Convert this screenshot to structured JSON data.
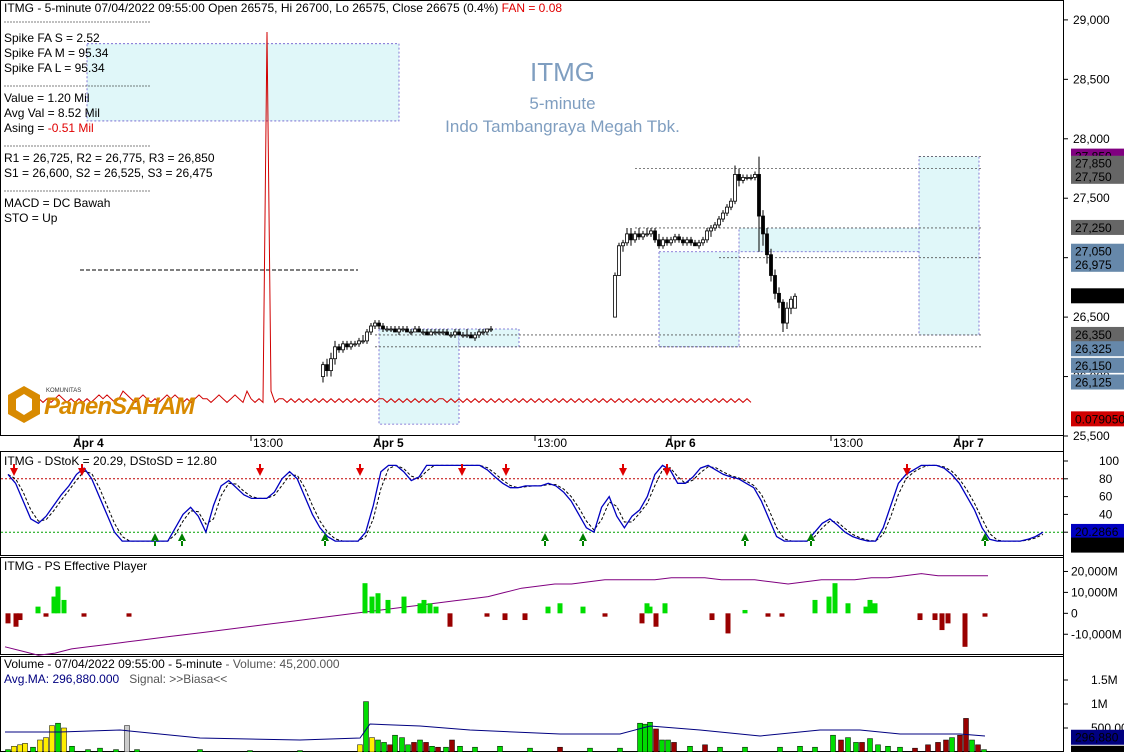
{
  "header": {
    "symbol": "ITMG",
    "text": "ITMG - 5-minute 07/04/2022 09:55:00 Open 26575, Hi 26700, Lo 26575, Close 26675 (0.4%)",
    "fan": "FAN = 0.08"
  },
  "watermark": {
    "symbol": "ITMG",
    "interval": "5-minute",
    "company": "Indo Tambangraya Megah Tbk."
  },
  "info_panel": {
    "spike_s": "Spike FA S =  2.52",
    "spike_m": "Spike FA M =  95.34",
    "spike_l": "Spike FA L =  95.34",
    "value": "Value = 1.20 Mil",
    "avg_val": "Avg Val = 8.52 Mil",
    "asing_label": "Asing = ",
    "asing_value": "-0.51 Mil",
    "resistance": "R1 = 26,725, R2 = 26,775, R3 = 26,850",
    "support": "S1 = 26,600, S2 = 26,525, S3 = 26,475",
    "macd": "MACD =  DC Bawah",
    "sto": "STO  =  Up"
  },
  "logo": {
    "small": "KOMUNITAS",
    "text": "PanenSAHAM"
  },
  "colors": {
    "up": "#ffffff",
    "down": "#000000",
    "band": "#e0f7f9",
    "red_line": "#d00000",
    "k_line": "#0000c0",
    "ps_line": "#800080",
    "vol_green": "#00dd00",
    "vol_red": "#990000",
    "vol_yellow": "#ffee00"
  },
  "chart_data": [
    {
      "type": "candlestick",
      "panel": "price",
      "title": "ITMG - 5-minute 07/04/2022 09:55:00",
      "ylim": [
        25500,
        29100
      ],
      "y_ticks": [
        "29,000",
        "28,500",
        "28,000",
        "27,500",
        "27,000",
        "26,500",
        "26,000",
        "25,500"
      ],
      "x_labels": [
        {
          "label": "Apr 4",
          "bar": 0
        },
        {
          "label": "13:00",
          "bar": 43
        },
        {
          "label": "Apr 5",
          "bar": 75
        },
        {
          "label": "13:00",
          "bar": 114
        },
        {
          "label": "Apr 6",
          "bar": 148
        },
        {
          "label": "13:00",
          "bar": 188
        },
        {
          "label": "Apr 7",
          "bar": 220
        }
      ],
      "ohlc_note": "Apr 4 shows no price bars; candles begin on Apr 5",
      "candles": [
        [
          61,
          26000,
          26125,
          25950,
          26100
        ],
        [
          62,
          26100,
          26150,
          26000,
          26050
        ],
        [
          63,
          26050,
          26200,
          26000,
          26150
        ],
        [
          64,
          26150,
          26300,
          26100,
          26250
        ],
        [
          65,
          26250,
          26275,
          26200,
          26225
        ],
        [
          66,
          26225,
          26300,
          26200,
          26275
        ],
        [
          67,
          26275,
          26300,
          26225,
          26250
        ],
        [
          68,
          26250,
          26300,
          26225,
          26275
        ],
        [
          69,
          26275,
          26300,
          26250,
          26275
        ],
        [
          70,
          26275,
          26325,
          26250,
          26300
        ],
        [
          71,
          26300,
          26350,
          26275,
          26300
        ],
        [
          72,
          26300,
          26400,
          26275,
          26375
        ],
        [
          73,
          26375,
          26450,
          26350,
          26425
        ],
        [
          74,
          26425,
          26475,
          26400,
          26450
        ],
        [
          75,
          26450,
          26475,
          26400,
          26425
        ],
        [
          76,
          26425,
          26450,
          26375,
          26400
        ],
        [
          77,
          26400,
          26425,
          26375,
          26400
        ],
        [
          78,
          26400,
          26425,
          26375,
          26400
        ],
        [
          79,
          26400,
          26425,
          26375,
          26375
        ],
        [
          80,
          26375,
          26425,
          26350,
          26400
        ],
        [
          81,
          26400,
          26425,
          26375,
          26400
        ],
        [
          82,
          26400,
          26425,
          26375,
          26375
        ],
        [
          83,
          26375,
          26400,
          26350,
          26375
        ],
        [
          84,
          26375,
          26425,
          26375,
          26400
        ],
        [
          85,
          26400,
          26425,
          26375,
          26375
        ],
        [
          86,
          26375,
          26400,
          26350,
          26375
        ],
        [
          87,
          26375,
          26400,
          26350,
          26350
        ],
        [
          88,
          26350,
          26400,
          26350,
          26375
        ],
        [
          89,
          26375,
          26400,
          26350,
          26375
        ],
        [
          90,
          26375,
          26400,
          26350,
          26375
        ],
        [
          91,
          26375,
          26400,
          26350,
          26375
        ],
        [
          92,
          26375,
          26400,
          26350,
          26350
        ],
        [
          93,
          26350,
          26375,
          26325,
          26350
        ],
        [
          94,
          26350,
          26400,
          26325,
          26375
        ],
        [
          95,
          26375,
          26400,
          26350,
          26350
        ],
        [
          96,
          26350,
          26375,
          26325,
          26350
        ],
        [
          97,
          26350,
          26400,
          26325,
          26350
        ],
        [
          98,
          26350,
          26375,
          26325,
          26325
        ],
        [
          99,
          26325,
          26375,
          26300,
          26350
        ],
        [
          100,
          26350,
          26400,
          26325,
          26375
        ],
        [
          101,
          26375,
          26400,
          26350,
          26375
        ],
        [
          102,
          26375,
          26400,
          26350,
          26400
        ],
        [
          103,
          26400,
          26425,
          26375,
          26400
        ],
        [
          134,
          26500,
          26875,
          26500,
          26850
        ],
        [
          135,
          26850,
          27125,
          26850,
          27100
        ],
        [
          136,
          27100,
          27150,
          27050,
          27125
        ],
        [
          137,
          27125,
          27250,
          27100,
          27200
        ],
        [
          138,
          27200,
          27250,
          27100,
          27150
        ],
        [
          139,
          27150,
          27225,
          27125,
          27200
        ],
        [
          140,
          27200,
          27250,
          27150,
          27175
        ],
        [
          141,
          27175,
          27225,
          27150,
          27200
        ],
        [
          142,
          27200,
          27250,
          27175,
          27200
        ],
        [
          143,
          27200,
          27250,
          27175,
          27225
        ],
        [
          144,
          27225,
          27250,
          27125,
          27150
        ],
        [
          145,
          27150,
          27200,
          27075,
          27100
        ],
        [
          146,
          27100,
          27175,
          27075,
          27150
        ],
        [
          147,
          27150,
          27175,
          27100,
          27125
        ],
        [
          148,
          27125,
          27175,
          27100,
          27150
        ],
        [
          149,
          27150,
          27200,
          27125,
          27175
        ],
        [
          150,
          27175,
          27200,
          27125,
          27150
        ],
        [
          151,
          27150,
          27175,
          27100,
          27125
        ],
        [
          152,
          27125,
          27175,
          27100,
          27150
        ],
        [
          153,
          27150,
          27175,
          27100,
          27125
        ],
        [
          154,
          27125,
          27150,
          27100,
          27100
        ],
        [
          155,
          27100,
          27150,
          27075,
          27125
        ],
        [
          156,
          27125,
          27175,
          27100,
          27150
        ],
        [
          157,
          27150,
          27250,
          27125,
          27225
        ],
        [
          158,
          27225,
          27275,
          27175,
          27250
        ],
        [
          159,
          27250,
          27300,
          27225,
          27275
        ],
        [
          160,
          27275,
          27350,
          27250,
          27325
        ],
        [
          161,
          27325,
          27400,
          27300,
          27375
        ],
        [
          162,
          27375,
          27450,
          27350,
          27425
        ],
        [
          163,
          27425,
          27500,
          27400,
          27475
        ],
        [
          164,
          27475,
          27775,
          27450,
          27700
        ],
        [
          165,
          27700,
          27750,
          27600,
          27650
        ],
        [
          166,
          27650,
          27700,
          27625,
          27675
        ],
        [
          167,
          27675,
          27700,
          27650,
          27675
        ],
        [
          168,
          27675,
          27700,
          27650,
          27675
        ],
        [
          169,
          27675,
          27725,
          27650,
          27700
        ],
        [
          170,
          27700,
          27850,
          27050,
          27350
        ],
        [
          171,
          27350,
          27400,
          27100,
          27200
        ],
        [
          172,
          27200,
          27250,
          26950,
          27025
        ],
        [
          173,
          27025,
          27075,
          26800,
          26850
        ],
        [
          174,
          26850,
          26900,
          26650,
          26700
        ],
        [
          175,
          26700,
          26750,
          26575,
          26625
        ],
        [
          176,
          26625,
          26650,
          26375,
          26450
        ],
        [
          177,
          26450,
          26625,
          26400,
          26575
        ],
        [
          178,
          26575,
          26675,
          26525,
          26650
        ],
        [
          179,
          26575,
          26700,
          26575,
          26675
        ]
      ],
      "candle_format": [
        "bar",
        "open",
        "high",
        "low",
        "close"
      ],
      "right_labels": [
        {
          "label": "27,850",
          "price": 27850,
          "color": "#800080"
        },
        {
          "label": "27,850",
          "price": 27790,
          "color": "#666666"
        },
        {
          "label": "27,750",
          "price": 27680,
          "color": "#666666"
        },
        {
          "label": "27,250",
          "price": 27250,
          "color": "#666666"
        },
        {
          "label": "27,050",
          "price": 27050,
          "color": "#6688aa"
        },
        {
          "label": "26,975",
          "price": 26940,
          "color": "#6688aa"
        },
        {
          "label": "26,675",
          "price": 26675,
          "color": "#000000"
        },
        {
          "label": "26,350",
          "price": 26350,
          "color": "#666666"
        },
        {
          "label": "26,325",
          "price": 26230,
          "color": "#6688aa"
        },
        {
          "label": "26,150",
          "price": 26090,
          "color": "#6688aa"
        },
        {
          "label": "26,125",
          "price": 25950,
          "color": "#6688aa"
        },
        {
          "label": "0.079050",
          "price": 25640,
          "color": "#d00000"
        }
      ],
      "fan_series": [
        3,
        2,
        3,
        2,
        3,
        2,
        3,
        4,
        3,
        2,
        3,
        2,
        3,
        2,
        3,
        2,
        3,
        4,
        3,
        4,
        3,
        2,
        3,
        5,
        4,
        3,
        2,
        3,
        4,
        3,
        2,
        3,
        2,
        3,
        4,
        3,
        4,
        3,
        2,
        3,
        2,
        3,
        4,
        3,
        3,
        2,
        3,
        4,
        3,
        2,
        3,
        4,
        3,
        2,
        5,
        3,
        2,
        3,
        2,
        100,
        5,
        2,
        3,
        3,
        2,
        3,
        2,
        3,
        2,
        3,
        2,
        3,
        2,
        3,
        2,
        3,
        2,
        3,
        2,
        3,
        2,
        3,
        2,
        3,
        2,
        3,
        2,
        3,
        3,
        2,
        3,
        2,
        3,
        2,
        3,
        2,
        3,
        2,
        3,
        2,
        3,
        2,
        3,
        3,
        2,
        3,
        2,
        3,
        2,
        3,
        2,
        3,
        2,
        3,
        2,
        3,
        2,
        3,
        2,
        3,
        2,
        3,
        2,
        3,
        2,
        3,
        2,
        3,
        2,
        3,
        2,
        3,
        2,
        3,
        2,
        3,
        2,
        3,
        2,
        3,
        2,
        3,
        2,
        3,
        2,
        3,
        2,
        3,
        2,
        3,
        2,
        3,
        2,
        3,
        2,
        3,
        2,
        3,
        2,
        3,
        2,
        3,
        2,
        3,
        2,
        3,
        2,
        3,
        2,
        3,
        2,
        3,
        2,
        3,
        2,
        3,
        2,
        3,
        2,
        3,
        2
      ]
    },
    {
      "type": "line",
      "panel": "stochastic",
      "title": "ITMG - DStoK = 20.29, DStoSD = 12.80",
      "ylim": [
        0,
        100
      ],
      "y_ticks": [
        "100",
        "80",
        "60",
        "40",
        "20"
      ],
      "levels": [
        80,
        20
      ],
      "last_k": "20.2866",
      "last_sd": "12.7964",
      "k": [
        85,
        75,
        55,
        35,
        30,
        38,
        50,
        62,
        72,
        85,
        92,
        80,
        60,
        40,
        20,
        10,
        10,
        10,
        10,
        10,
        10,
        10,
        25,
        40,
        48,
        38,
        20,
        50,
        72,
        78,
        70,
        62,
        58,
        58,
        58,
        65,
        80,
        88,
        80,
        60,
        40,
        25,
        15,
        10,
        10,
        10,
        10,
        20,
        50,
        88,
        95,
        95,
        88,
        78,
        82,
        95,
        95,
        95,
        95,
        95,
        95,
        95,
        95,
        90,
        82,
        75,
        70,
        70,
        72,
        72,
        72,
        75,
        72,
        65,
        55,
        40,
        25,
        20,
        48,
        60,
        38,
        25,
        38,
        45,
        60,
        85,
        95,
        90,
        75,
        75,
        82,
        92,
        95,
        90,
        85,
        82,
        80,
        75,
        70,
        55,
        35,
        15,
        10,
        10,
        10,
        10,
        20,
        30,
        35,
        28,
        20,
        15,
        12,
        10,
        10,
        25,
        50,
        75,
        85,
        90,
        95,
        95,
        95,
        92,
        85,
        75,
        60,
        45,
        25,
        12,
        10,
        10,
        10,
        10,
        12,
        15,
        20
      ]
    },
    {
      "type": "bar",
      "panel": "effective_player",
      "title": "ITMG - PS Effective Player",
      "y_ticks": [
        "20,000M",
        "10,000M",
        "0",
        "-10,000M"
      ],
      "ylim": [
        -18000,
        25000
      ]
    },
    {
      "type": "bar",
      "panel": "volume",
      "title": "Volume - 07/04/2022 09:55:00 - 5-minute",
      "volume_text": "- Volume: 45,200.000",
      "avg_ma": "Avg.MA: 296,880.000",
      "signal": "Signal: >>Biasa<<",
      "y_ticks": [
        "1.5M",
        "1M",
        "500,000"
      ],
      "ylim": [
        0,
        2000000
      ],
      "last_ma_label": "296,880",
      "last_vol_label": "45,200"
    }
  ]
}
